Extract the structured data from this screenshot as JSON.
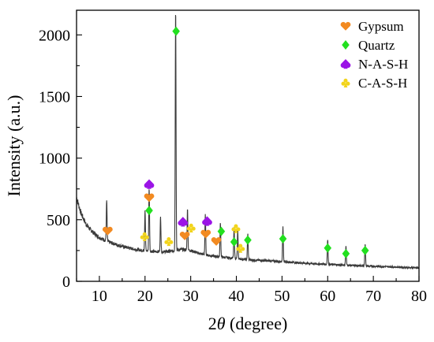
{
  "chart_data": {
    "type": "line",
    "xlabel_prefix": "2",
    "xlabel_symbol": "θ",
    "xlabel_suffix": " (degree)",
    "ylabel": "Intensity (a.u.)",
    "xlim": [
      5,
      80
    ],
    "ylim": [
      0,
      2200
    ],
    "x_ticks": [
      10,
      20,
      30,
      40,
      50,
      60,
      70,
      80
    ],
    "y_ticks": [
      0,
      500,
      1000,
      1500,
      2000
    ],
    "grid": false,
    "legend_position": "top-right",
    "legend": [
      {
        "name": "Gypsum",
        "marker": "heart",
        "color": "#f28a21"
      },
      {
        "name": "Quartz",
        "marker": "diamond",
        "color": "#22e01f"
      },
      {
        "name": "N-A-S-H",
        "marker": "spade",
        "color": "#9b14e6"
      },
      {
        "name": "C-A-S-H",
        "marker": "club",
        "color": "#f2d41b"
      }
    ],
    "baseline": {
      "x": [
        5,
        6,
        7,
        8,
        9,
        10,
        12,
        14,
        16,
        18,
        20,
        22,
        24,
        26,
        28,
        30,
        32,
        34,
        36,
        38,
        40,
        42,
        44,
        46,
        48,
        50,
        52,
        54,
        56,
        58,
        60,
        62,
        64,
        66,
        68,
        70,
        72,
        74,
        76,
        78,
        80
      ],
      "y": [
        680,
        550,
        470,
        420,
        385,
        355,
        320,
        295,
        275,
        258,
        248,
        242,
        240,
        245,
        260,
        250,
        225,
        210,
        200,
        192,
        185,
        178,
        172,
        168,
        165,
        160,
        155,
        150,
        145,
        141,
        138,
        134,
        131,
        128,
        125,
        122,
        120,
        117,
        114,
        111,
        108
      ]
    },
    "peaks": [
      {
        "x": 11.6,
        "y": 330
      },
      {
        "x": 20.0,
        "y": 330
      },
      {
        "x": 20.9,
        "y": 510
      },
      {
        "x": 23.4,
        "y": 280
      },
      {
        "x": 26.7,
        "y": 1960
      },
      {
        "x": 29.3,
        "y": 330
      },
      {
        "x": 33.2,
        "y": 320
      },
      {
        "x": 36.5,
        "y": 280
      },
      {
        "x": 39.5,
        "y": 250
      },
      {
        "x": 40.3,
        "y": 230
      },
      {
        "x": 42.5,
        "y": 210
      },
      {
        "x": 50.2,
        "y": 285
      },
      {
        "x": 60.0,
        "y": 200
      },
      {
        "x": 64.0,
        "y": 160
      },
      {
        "x": 68.2,
        "y": 180
      }
    ],
    "markers": [
      {
        "type": "heart",
        "x": 11.8,
        "y": 410
      },
      {
        "type": "club",
        "x": 19.9,
        "y": 365
      },
      {
        "type": "heart",
        "x": 20.9,
        "y": 680
      },
      {
        "type": "diamond",
        "x": 20.9,
        "y": 575
      },
      {
        "type": "spade",
        "x": 20.9,
        "y": 790
      },
      {
        "type": "club",
        "x": 25.2,
        "y": 325
      },
      {
        "type": "diamond",
        "x": 26.8,
        "y": 2030
      },
      {
        "type": "spade",
        "x": 28.3,
        "y": 485
      },
      {
        "type": "heart",
        "x": 28.7,
        "y": 370
      },
      {
        "type": "club",
        "x": 30.1,
        "y": 435
      },
      {
        "type": "heart",
        "x": 33.3,
        "y": 385
      },
      {
        "type": "spade",
        "x": 33.6,
        "y": 490
      },
      {
        "type": "heart",
        "x": 35.6,
        "y": 325
      },
      {
        "type": "diamond",
        "x": 36.7,
        "y": 405
      },
      {
        "type": "club",
        "x": 39.9,
        "y": 430
      },
      {
        "type": "diamond",
        "x": 39.5,
        "y": 320
      },
      {
        "type": "club",
        "x": 40.9,
        "y": 270
      },
      {
        "type": "diamond",
        "x": 42.5,
        "y": 335
      },
      {
        "type": "diamond",
        "x": 50.2,
        "y": 345
      },
      {
        "type": "diamond",
        "x": 60.0,
        "y": 270
      },
      {
        "type": "diamond",
        "x": 64.0,
        "y": 225
      },
      {
        "type": "diamond",
        "x": 68.2,
        "y": 250
      }
    ]
  }
}
